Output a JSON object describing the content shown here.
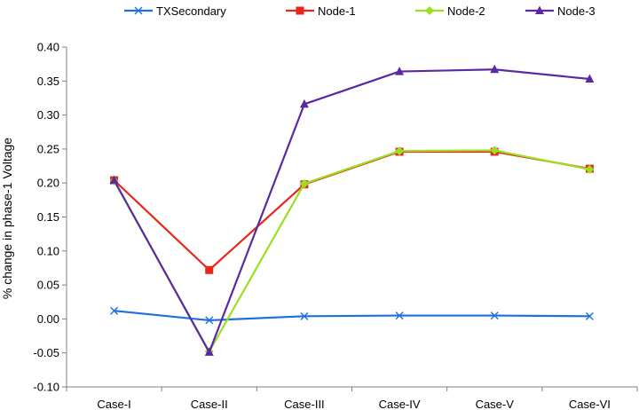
{
  "chart_data": {
    "type": "line",
    "title": "",
    "xlabel": "",
    "ylabel": "% change in phase-1 Voltage",
    "ylim": [
      -0.1,
      0.4
    ],
    "ytick_step": 0.05,
    "grid": false,
    "legend_placement": "top",
    "categories": [
      "Case-I",
      "Case-II",
      "Case-III",
      "Case-IV",
      "Case-V",
      "Case-VI"
    ],
    "yticks": [
      "0.40",
      "0.35",
      "0.30",
      "0.25",
      "0.20",
      "0.15",
      "0.10",
      "0.05",
      "0.00",
      "-0.05",
      "-0.10"
    ],
    "series": [
      {
        "name": "TXSecondary",
        "color": "#1f6fe0",
        "marker": "x",
        "values": [
          0.012,
          -0.002,
          0.004,
          0.005,
          0.005,
          0.004
        ]
      },
      {
        "name": "Node-1",
        "color": "#e8261c",
        "marker": "square",
        "values": [
          0.204,
          0.072,
          0.198,
          0.246,
          0.246,
          0.221
        ]
      },
      {
        "name": "Node-2",
        "color": "#99e01e",
        "marker": "diamond",
        "values": [
          0.203,
          -0.048,
          0.199,
          0.247,
          0.248,
          0.22
        ]
      },
      {
        "name": "Node-3",
        "color": "#5b2aa3",
        "marker": "triangle",
        "values": [
          0.204,
          -0.049,
          0.316,
          0.364,
          0.367,
          0.353
        ]
      }
    ]
  }
}
